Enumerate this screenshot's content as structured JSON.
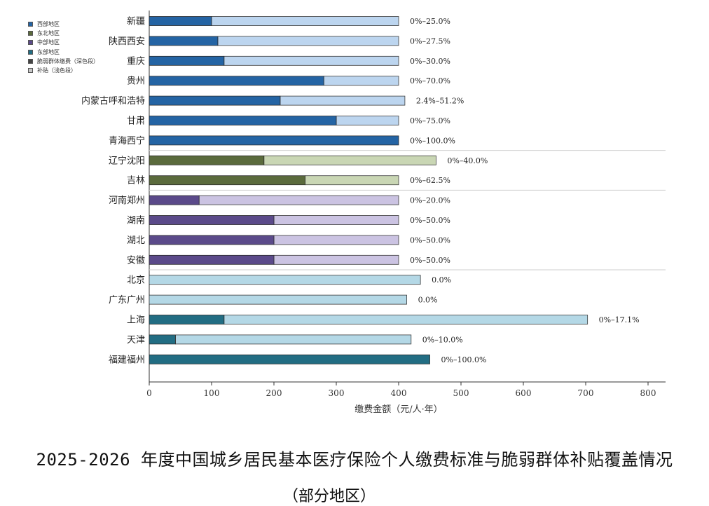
{
  "chart_data": {
    "type": "bar",
    "orientation": "horizontal",
    "stacked": true,
    "xlabel": "缴费金额（元/人·年）",
    "xlim": [
      0,
      800
    ],
    "xticks": [
      0,
      100,
      200,
      300,
      400,
      500,
      600,
      700,
      800
    ],
    "grid": false,
    "legend_position": "top-left",
    "legend": [
      {
        "label": "西部地区",
        "color": "#2464a4"
      },
      {
        "label": "东北地区",
        "color": "#5a6a3c"
      },
      {
        "label": "中部地区",
        "color": "#5b4a8a"
      },
      {
        "label": "东部地区",
        "color": "#226d83"
      },
      {
        "label": "脆弱群体缴费（深色段）",
        "color": "#444444"
      },
      {
        "label": "补贴（浅色段）",
        "color": "#c8c8c8"
      }
    ],
    "series": [
      {
        "name": "脆弱群体缴费（深色段）",
        "key": "dark"
      },
      {
        "name": "补贴（浅色段）",
        "key": "light"
      }
    ],
    "categories": [
      {
        "label": "新疆",
        "region": "west",
        "dark": 100,
        "total": 400,
        "annotation": "0%–25.0%"
      },
      {
        "label": "陕西西安",
        "region": "west",
        "dark": 110,
        "total": 400,
        "annotation": "0%–27.5%"
      },
      {
        "label": "重庆",
        "region": "west",
        "dark": 120,
        "total": 400,
        "annotation": "0%–30.0%"
      },
      {
        "label": "贵州",
        "region": "west",
        "dark": 280,
        "total": 400,
        "annotation": "0%–70.0%"
      },
      {
        "label": "内蒙古呼和浩特",
        "region": "west",
        "dark": 210,
        "total": 410,
        "annotation": "2.4%–51.2%"
      },
      {
        "label": "甘肃",
        "region": "west",
        "dark": 300,
        "total": 400,
        "annotation": "0%–75.0%"
      },
      {
        "label": "青海西宁",
        "region": "west",
        "dark": 400,
        "total": 400,
        "annotation": "0%–100.0%"
      },
      {
        "label": "辽宁沈阳",
        "region": "northeast",
        "dark": 184,
        "total": 460,
        "annotation": "0%–40.0%"
      },
      {
        "label": "吉林",
        "region": "northeast",
        "dark": 250,
        "total": 400,
        "annotation": "0%–62.5%"
      },
      {
        "label": "河南郑州",
        "region": "central",
        "dark": 80,
        "total": 400,
        "annotation": "0%–20.0%"
      },
      {
        "label": "湖南",
        "region": "central",
        "dark": 200,
        "total": 400,
        "annotation": "0%–50.0%"
      },
      {
        "label": "湖北",
        "region": "central",
        "dark": 200,
        "total": 400,
        "annotation": "0%–50.0%"
      },
      {
        "label": "安徽",
        "region": "central",
        "dark": 200,
        "total": 400,
        "annotation": "0%–50.0%"
      },
      {
        "label": "北京",
        "region": "east",
        "dark": 0,
        "total": 435,
        "annotation": "0.0%"
      },
      {
        "label": "广东广州",
        "region": "east",
        "dark": 0,
        "total": 413,
        "annotation": "0.0%"
      },
      {
        "label": "上海",
        "region": "east",
        "dark": 120,
        "total": 703,
        "annotation": "0%–17.1%"
      },
      {
        "label": "天津",
        "region": "east",
        "dark": 42,
        "total": 420,
        "annotation": "0%–10.0%"
      },
      {
        "label": "福建福州",
        "region": "east",
        "dark": 450,
        "total": 450,
        "annotation": "0%–100.0%"
      }
    ],
    "region_colors": {
      "west": {
        "dark": "#2464a4",
        "light": "#bcd5ef"
      },
      "northeast": {
        "dark": "#5a6a3c",
        "light": "#c9d6b4"
      },
      "central": {
        "dark": "#5b4a8a",
        "light": "#cbc3e2"
      },
      "east": {
        "dark": "#226d83",
        "light": "#b4d8e6"
      }
    },
    "caption": "2025-2026 年度中国城乡居民基本医疗保险个人缴费标准与脆弱群体补贴覆盖情况",
    "caption_sub": "（部分地区）"
  }
}
